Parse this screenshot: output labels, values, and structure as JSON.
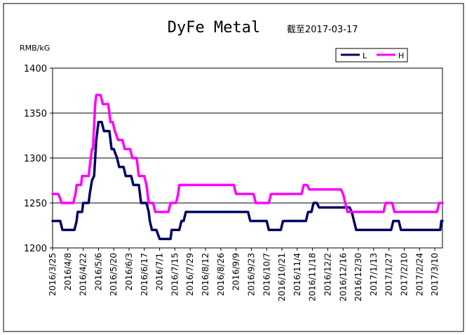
{
  "chart_data": {
    "type": "line",
    "title": "DyFe Metal",
    "subtitle": "截至2017-03-17",
    "ylabel": "RMB/kG",
    "xlabel": "",
    "ylim": [
      1200,
      1400
    ],
    "yticks": [
      1200,
      1250,
      1300,
      1350,
      1400
    ],
    "grid": "horizontal",
    "legend_position": "top-right",
    "x_tick_labels": [
      "2016/3/25",
      "2016/4/8",
      "2016/4/22",
      "2016/5/6",
      "2016/5/20",
      "2016/6/3",
      "2016/6/17",
      "2016/7/1",
      "2016/7/15",
      "2016/7/29",
      "2016/8/12",
      "2016/8/26",
      "2016/9/9",
      "2016/9/23",
      "2016/10/7",
      "2016/10/21",
      "2016/11/4",
      "2016/11/18",
      "2016/12/2",
      "2016/12/16",
      "2016/12/30",
      "2017/1/13",
      "2017/1/27",
      "2017/2/10",
      "2017/2/24",
      "2017/3/10"
    ],
    "x_range": [
      "2016-03-25",
      "2017-03-17"
    ],
    "series": [
      {
        "name": "L",
        "color": "#000066",
        "points": [
          [
            "2016-03-25",
            1230
          ],
          [
            "2016-04-01",
            1230
          ],
          [
            "2016-04-03",
            1220
          ],
          [
            "2016-04-14",
            1220
          ],
          [
            "2016-04-16",
            1230
          ],
          [
            "2016-04-17",
            1240
          ],
          [
            "2016-04-21",
            1240
          ],
          [
            "2016-04-22",
            1250
          ],
          [
            "2016-04-27",
            1250
          ],
          [
            "2016-04-28",
            1260
          ],
          [
            "2016-04-30",
            1275
          ],
          [
            "2016-05-02",
            1280
          ],
          [
            "2016-05-04",
            1320
          ],
          [
            "2016-05-06",
            1340
          ],
          [
            "2016-05-09",
            1340
          ],
          [
            "2016-05-11",
            1330
          ],
          [
            "2016-05-16",
            1330
          ],
          [
            "2016-05-18",
            1310
          ],
          [
            "2016-05-20",
            1310
          ],
          [
            "2016-05-23",
            1300
          ],
          [
            "2016-05-25",
            1290
          ],
          [
            "2016-05-29",
            1290
          ],
          [
            "2016-05-31",
            1280
          ],
          [
            "2016-06-05",
            1280
          ],
          [
            "2016-06-07",
            1270
          ],
          [
            "2016-06-12",
            1270
          ],
          [
            "2016-06-14",
            1250
          ],
          [
            "2016-06-19",
            1250
          ],
          [
            "2016-06-21",
            1240
          ],
          [
            "2016-06-22",
            1230
          ],
          [
            "2016-06-24",
            1220
          ],
          [
            "2016-06-28",
            1220
          ],
          [
            "2016-07-01",
            1210
          ],
          [
            "2016-07-11",
            1210
          ],
          [
            "2016-07-12",
            1220
          ],
          [
            "2016-07-19",
            1220
          ],
          [
            "2016-07-21",
            1230
          ],
          [
            "2016-07-23",
            1230
          ],
          [
            "2016-07-25",
            1240
          ],
          [
            "2016-09-20",
            1240
          ],
          [
            "2016-09-22",
            1230
          ],
          [
            "2016-10-07",
            1230
          ],
          [
            "2016-10-09",
            1220
          ],
          [
            "2016-10-20",
            1220
          ],
          [
            "2016-10-22",
            1230
          ],
          [
            "2016-11-12",
            1230
          ],
          [
            "2016-11-14",
            1240
          ],
          [
            "2016-11-17",
            1240
          ],
          [
            "2016-11-19",
            1250
          ],
          [
            "2016-11-22",
            1250
          ],
          [
            "2016-11-24",
            1245
          ],
          [
            "2016-12-22",
            1245
          ],
          [
            "2016-12-24",
            1240
          ],
          [
            "2016-12-26",
            1230
          ],
          [
            "2016-12-28",
            1220
          ],
          [
            "2017-01-29",
            1220
          ],
          [
            "2017-01-31",
            1230
          ],
          [
            "2017-02-05",
            1230
          ],
          [
            "2017-02-07",
            1220
          ],
          [
            "2017-03-15",
            1220
          ],
          [
            "2017-03-16",
            1230
          ],
          [
            "2017-03-17",
            1230
          ]
        ]
      },
      {
        "name": "H",
        "color": "#ff00ff",
        "points": [
          [
            "2016-03-25",
            1260
          ],
          [
            "2016-03-30",
            1260
          ],
          [
            "2016-04-01",
            1255
          ],
          [
            "2016-04-02",
            1250
          ],
          [
            "2016-04-13",
            1250
          ],
          [
            "2016-04-15",
            1260
          ],
          [
            "2016-04-16",
            1270
          ],
          [
            "2016-04-20",
            1270
          ],
          [
            "2016-04-21",
            1280
          ],
          [
            "2016-04-27",
            1280
          ],
          [
            "2016-04-29",
            1300
          ],
          [
            "2016-04-30",
            1310
          ],
          [
            "2016-05-01",
            1310
          ],
          [
            "2016-05-03",
            1360
          ],
          [
            "2016-05-04",
            1370
          ],
          [
            "2016-05-08",
            1370
          ],
          [
            "2016-05-10",
            1360
          ],
          [
            "2016-05-15",
            1360
          ],
          [
            "2016-05-17",
            1340
          ],
          [
            "2016-05-19",
            1340
          ],
          [
            "2016-05-21",
            1330
          ],
          [
            "2016-05-24",
            1320
          ],
          [
            "2016-05-28",
            1320
          ],
          [
            "2016-05-30",
            1310
          ],
          [
            "2016-06-04",
            1310
          ],
          [
            "2016-06-06",
            1300
          ],
          [
            "2016-06-10",
            1300
          ],
          [
            "2016-06-12",
            1280
          ],
          [
            "2016-06-17",
            1280
          ],
          [
            "2016-06-19",
            1270
          ],
          [
            "2016-06-21",
            1250
          ],
          [
            "2016-06-25",
            1250
          ],
          [
            "2016-06-27",
            1240
          ],
          [
            "2016-07-09",
            1240
          ],
          [
            "2016-07-11",
            1250
          ],
          [
            "2016-07-16",
            1250
          ],
          [
            "2016-07-18",
            1260
          ],
          [
            "2016-07-19",
            1270
          ],
          [
            "2016-09-07",
            1270
          ],
          [
            "2016-09-09",
            1260
          ],
          [
            "2016-09-25",
            1260
          ],
          [
            "2016-09-27",
            1250
          ],
          [
            "2016-10-09",
            1250
          ],
          [
            "2016-10-11",
            1260
          ],
          [
            "2016-11-08",
            1260
          ],
          [
            "2016-11-10",
            1270
          ],
          [
            "2016-11-13",
            1270
          ],
          [
            "2016-11-15",
            1265
          ],
          [
            "2016-12-14",
            1265
          ],
          [
            "2016-12-16",
            1260
          ],
          [
            "2016-12-18",
            1250
          ],
          [
            "2016-12-20",
            1240
          ],
          [
            "2017-01-22",
            1240
          ],
          [
            "2017-01-24",
            1250
          ],
          [
            "2017-01-30",
            1250
          ],
          [
            "2017-02-01",
            1240
          ],
          [
            "2017-03-12",
            1240
          ],
          [
            "2017-03-14",
            1250
          ],
          [
            "2017-03-17",
            1250
          ]
        ]
      }
    ]
  }
}
